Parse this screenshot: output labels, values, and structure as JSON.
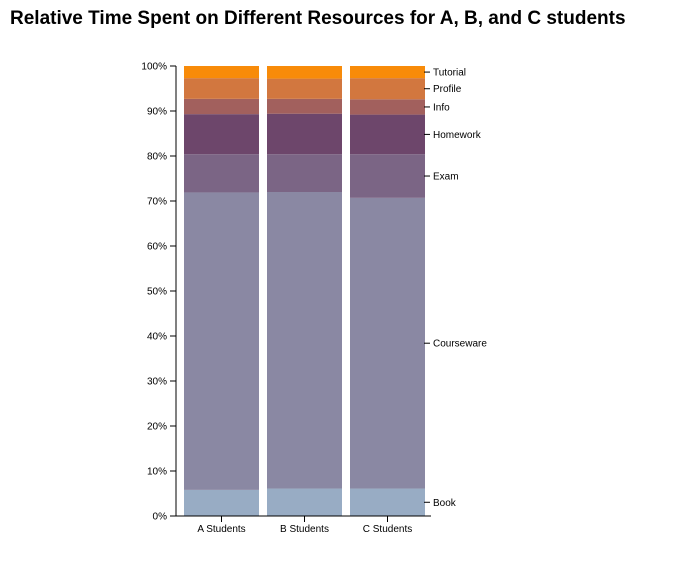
{
  "chart_data": {
    "type": "bar",
    "stacked": true,
    "normalized": true,
    "title": "Relative Time Spent on Different Resources for A, B, and C students",
    "xlabel": "",
    "ylabel": "",
    "categories": [
      "A Students",
      "B Students",
      "C Students"
    ],
    "ylim": [
      0,
      100
    ],
    "yticks": [
      "0%",
      "10%",
      "20%",
      "30%",
      "40%",
      "50%",
      "60%",
      "70%",
      "80%",
      "90%",
      "100%"
    ],
    "legend_position": "right",
    "grid": false,
    "series": [
      {
        "name": "Book",
        "color": "#98acc4",
        "values": [
          5.8,
          6.1,
          6.1
        ]
      },
      {
        "name": "Courseware",
        "color": "#8a88a3",
        "values": [
          66.1,
          65.9,
          64.6
        ]
      },
      {
        "name": "Exam",
        "color": "#7b6585",
        "values": [
          8.5,
          8.4,
          9.7
        ]
      },
      {
        "name": "Homework",
        "color": "#6d466b",
        "values": [
          8.9,
          9.0,
          8.8
        ]
      },
      {
        "name": "Info",
        "color": "#a2605d",
        "values": [
          3.4,
          3.3,
          3.4
        ]
      },
      {
        "name": "Profile",
        "color": "#d2773f",
        "values": [
          4.6,
          4.5,
          4.7
        ]
      },
      {
        "name": "Tutorial",
        "color": "#f88b09",
        "values": [
          2.7,
          2.8,
          2.7
        ]
      }
    ]
  }
}
